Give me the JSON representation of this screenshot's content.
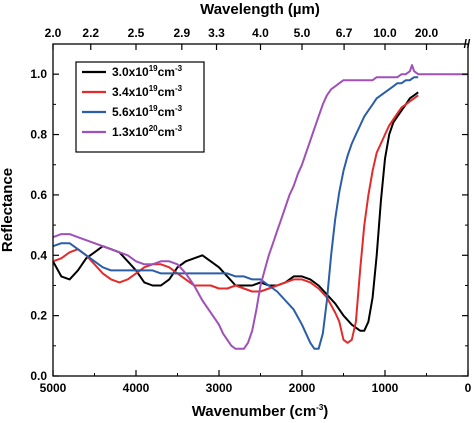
{
  "chart_data": {
    "type": "line",
    "xlabel": "Wavenumber (cm",
    "xlabel_sup": "-3",
    "xlabel_close": ")",
    "ylabel": "Reflectance",
    "top_xlabel": "Wavelength (µm)",
    "xlim": [
      5000,
      0
    ],
    "ylim": [
      0.0,
      1.1
    ],
    "x_ticks": [
      5000,
      4000,
      3000,
      2000,
      1000,
      0
    ],
    "x_tick_labels": [
      "5000",
      "4000",
      "3000",
      "2000",
      "1000",
      "0"
    ],
    "y_ticks": [
      0.0,
      0.2,
      0.4,
      0.6,
      0.8,
      1.0
    ],
    "y_tick_labels": [
      "0.0",
      "0.2",
      "0.4",
      "0.6",
      "0.8",
      "1.0"
    ],
    "top_ticks": [
      {
        "label": "2.0",
        "wavenumber": 5000
      },
      {
        "label": "2.2",
        "wavenumber": 4545
      },
      {
        "label": "2.5",
        "wavenumber": 4000
      },
      {
        "label": "2.9",
        "wavenumber": 3448
      },
      {
        "label": "3.3",
        "wavenumber": 3030
      },
      {
        "label": "4.0",
        "wavenumber": 2500
      },
      {
        "label": "5.0",
        "wavenumber": 2000
      },
      {
        "label": "6.7",
        "wavenumber": 1493
      },
      {
        "label": "10.0",
        "wavenumber": 1000
      },
      {
        "label": "20.0",
        "wavenumber": 500
      }
    ],
    "break_mark": "//",
    "grid": false,
    "legend_position": "top-left",
    "series": [
      {
        "name_base": "3.0x10",
        "name_exp": "19",
        "name_unit": "cm",
        "name_unit_exp": "-3",
        "color": "#000000",
        "x": [
          5000,
          4900,
          4800,
          4700,
          4600,
          4500,
          4400,
          4300,
          4200,
          4100,
          4000,
          3900,
          3800,
          3700,
          3600,
          3500,
          3400,
          3300,
          3200,
          3100,
          3000,
          2900,
          2800,
          2700,
          2600,
          2500,
          2400,
          2300,
          2200,
          2100,
          2000,
          1900,
          1800,
          1700,
          1600,
          1500,
          1400,
          1300,
          1250,
          1200,
          1150,
          1100,
          1050,
          1000,
          950,
          900,
          850,
          800,
          750,
          700,
          650,
          600
        ],
        "y": [
          0.38,
          0.33,
          0.32,
          0.35,
          0.39,
          0.41,
          0.43,
          0.42,
          0.41,
          0.38,
          0.35,
          0.31,
          0.3,
          0.3,
          0.32,
          0.36,
          0.38,
          0.39,
          0.4,
          0.38,
          0.36,
          0.33,
          0.3,
          0.3,
          0.3,
          0.31,
          0.3,
          0.3,
          0.31,
          0.33,
          0.33,
          0.32,
          0.3,
          0.27,
          0.24,
          0.2,
          0.17,
          0.15,
          0.15,
          0.18,
          0.26,
          0.4,
          0.58,
          0.72,
          0.8,
          0.84,
          0.86,
          0.88,
          0.9,
          0.92,
          0.93,
          0.94
        ]
      },
      {
        "name_base": "3.4x10",
        "name_exp": "19",
        "name_unit": "cm",
        "name_unit_exp": "-3",
        "color": "#e32b2b",
        "x": [
          5000,
          4900,
          4800,
          4700,
          4600,
          4500,
          4400,
          4300,
          4200,
          4100,
          4000,
          3900,
          3800,
          3700,
          3600,
          3500,
          3400,
          3300,
          3200,
          3100,
          3000,
          2900,
          2800,
          2700,
          2600,
          2500,
          2400,
          2300,
          2200,
          2100,
          2000,
          1900,
          1800,
          1700,
          1600,
          1550,
          1500,
          1450,
          1400,
          1350,
          1300,
          1250,
          1200,
          1150,
          1100,
          1050,
          1000,
          950,
          900,
          850,
          800,
          750,
          700,
          650,
          600
        ],
        "y": [
          0.38,
          0.39,
          0.41,
          0.42,
          0.4,
          0.37,
          0.34,
          0.32,
          0.31,
          0.32,
          0.34,
          0.36,
          0.37,
          0.37,
          0.36,
          0.34,
          0.32,
          0.3,
          0.3,
          0.3,
          0.29,
          0.29,
          0.3,
          0.29,
          0.28,
          0.28,
          0.29,
          0.3,
          0.31,
          0.32,
          0.32,
          0.31,
          0.29,
          0.26,
          0.21,
          0.18,
          0.12,
          0.11,
          0.12,
          0.18,
          0.35,
          0.5,
          0.6,
          0.68,
          0.74,
          0.77,
          0.8,
          0.83,
          0.85,
          0.87,
          0.89,
          0.9,
          0.91,
          0.92,
          0.93
        ]
      },
      {
        "name_base": "5.6x10",
        "name_exp": "19",
        "name_unit": "cm",
        "name_unit_exp": "-3",
        "color": "#2a5ea8",
        "x": [
          5000,
          4900,
          4800,
          4700,
          4600,
          4500,
          4400,
          4300,
          4200,
          4100,
          4000,
          3900,
          3800,
          3700,
          3600,
          3500,
          3400,
          3300,
          3200,
          3100,
          3000,
          2900,
          2800,
          2700,
          2600,
          2500,
          2400,
          2300,
          2200,
          2100,
          2000,
          1950,
          1900,
          1850,
          1800,
          1750,
          1700,
          1650,
          1600,
          1550,
          1500,
          1450,
          1400,
          1350,
          1300,
          1250,
          1200,
          1150,
          1100,
          1050,
          1000,
          950,
          900,
          850,
          800,
          750,
          700,
          650,
          600
        ],
        "y": [
          0.43,
          0.44,
          0.44,
          0.42,
          0.4,
          0.38,
          0.36,
          0.35,
          0.35,
          0.35,
          0.35,
          0.35,
          0.35,
          0.34,
          0.34,
          0.34,
          0.34,
          0.34,
          0.34,
          0.34,
          0.34,
          0.34,
          0.33,
          0.33,
          0.32,
          0.32,
          0.3,
          0.28,
          0.25,
          0.22,
          0.17,
          0.14,
          0.11,
          0.09,
          0.09,
          0.14,
          0.25,
          0.4,
          0.52,
          0.61,
          0.68,
          0.73,
          0.77,
          0.8,
          0.83,
          0.86,
          0.88,
          0.9,
          0.92,
          0.93,
          0.94,
          0.95,
          0.96,
          0.97,
          0.97,
          0.98,
          0.98,
          0.99,
          0.99
        ]
      },
      {
        "name_base": "1.3x10",
        "name_exp": "20",
        "name_unit": "cm",
        "name_unit_exp": "-3",
        "color": "#a050b8",
        "x": [
          5000,
          4900,
          4800,
          4700,
          4600,
          4500,
          4400,
          4300,
          4200,
          4100,
          4000,
          3900,
          3800,
          3700,
          3600,
          3500,
          3400,
          3300,
          3200,
          3100,
          3000,
          2950,
          2900,
          2850,
          2800,
          2750,
          2700,
          2650,
          2600,
          2550,
          2500,
          2450,
          2400,
          2350,
          2300,
          2250,
          2200,
          2150,
          2100,
          2050,
          2000,
          1950,
          1900,
          1850,
          1800,
          1750,
          1700,
          1650,
          1600,
          1550,
          1500,
          1450,
          1400,
          1350,
          1300,
          1250,
          1200,
          1150,
          1100,
          1050,
          1000,
          950,
          900,
          850,
          800,
          750,
          700,
          675,
          650,
          600,
          500,
          400,
          300,
          200,
          100,
          0
        ],
        "y": [
          0.46,
          0.47,
          0.47,
          0.46,
          0.45,
          0.44,
          0.43,
          0.42,
          0.41,
          0.4,
          0.38,
          0.37,
          0.37,
          0.38,
          0.38,
          0.37,
          0.34,
          0.3,
          0.25,
          0.21,
          0.17,
          0.14,
          0.12,
          0.1,
          0.09,
          0.09,
          0.09,
          0.11,
          0.15,
          0.22,
          0.3,
          0.35,
          0.4,
          0.44,
          0.48,
          0.52,
          0.56,
          0.6,
          0.63,
          0.67,
          0.7,
          0.74,
          0.78,
          0.82,
          0.86,
          0.9,
          0.93,
          0.95,
          0.96,
          0.97,
          0.98,
          0.98,
          0.98,
          0.98,
          0.98,
          0.98,
          0.98,
          0.98,
          0.99,
          0.99,
          0.99,
          0.99,
          0.99,
          0.99,
          1.0,
          1.0,
          1.01,
          1.03,
          1.01,
          1.0,
          1.0,
          1.0,
          1.0,
          1.0,
          1.0,
          1.0
        ]
      }
    ]
  }
}
